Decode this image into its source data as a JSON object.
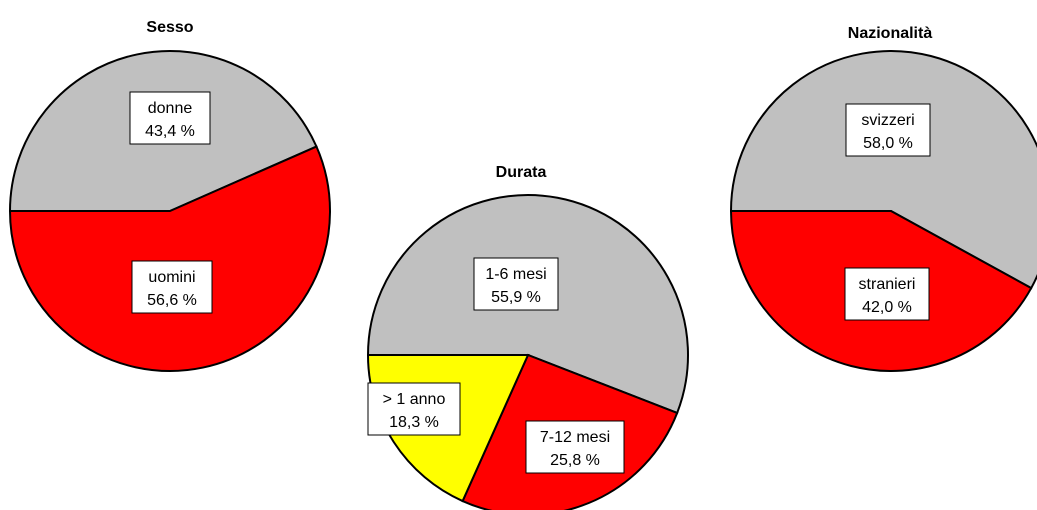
{
  "chart_data": [
    {
      "type": "pie",
      "title": "Sesso",
      "slices": [
        {
          "label": "donne",
          "value": 43.4,
          "value_text": "43,4 %",
          "color": "#c0c0c0"
        },
        {
          "label": "uomini",
          "value": 56.6,
          "value_text": "56,6 %",
          "color": "#ff0000"
        }
      ]
    },
    {
      "type": "pie",
      "title": "Durata",
      "slices": [
        {
          "label": "1-6 mesi",
          "value": 55.9,
          "value_text": "55,9 %",
          "color": "#c0c0c0"
        },
        {
          "label": "7-12 mesi",
          "value": 25.8,
          "value_text": "25,8 %",
          "color": "#ff0000"
        },
        {
          "label": "> 1 anno",
          "value": 18.3,
          "value_text": "18,3 %",
          "color": "#ffff00"
        }
      ]
    },
    {
      "type": "pie",
      "title": "Nazionalità",
      "slices": [
        {
          "label": "svizzeri",
          "value": 58.0,
          "value_text": "58,0 %",
          "color": "#c0c0c0"
        },
        {
          "label": "stranieri",
          "value": 42.0,
          "value_text": "42,0 %",
          "color": "#ff0000"
        }
      ]
    }
  ]
}
